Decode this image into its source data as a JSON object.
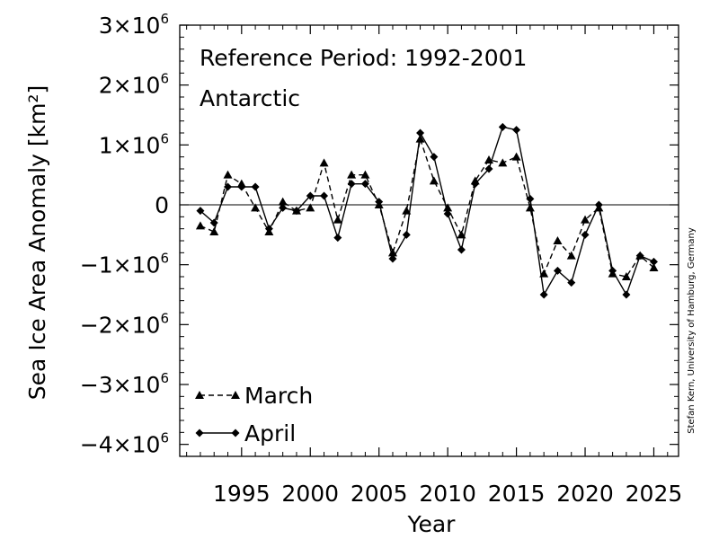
{
  "chart_data": {
    "type": "line",
    "annotations": {
      "reference_period": "Reference Period: 1992-2001",
      "region": "Antarctic",
      "credit": "Stefan Kern, University of Hamburg, Germany"
    },
    "xlabel": "Year",
    "ylabel": "Sea Ice Area Anomaly [km²]",
    "xlim": [
      1990.5,
      2026.8
    ],
    "ylim": [
      -4200000,
      3000000
    ],
    "x_ticks": [
      1995,
      2000,
      2005,
      2010,
      2015,
      2020,
      2025
    ],
    "x_tick_labels": [
      "1995",
      "2000",
      "2005",
      "2010",
      "2015",
      "2020",
      "2025"
    ],
    "y_ticks": [
      {
        "value": 3000000,
        "label": "3×10",
        "exp": "6"
      },
      {
        "value": 2000000,
        "label": "2×10",
        "exp": "6"
      },
      {
        "value": 1000000,
        "label": "1×10",
        "exp": "6"
      },
      {
        "value": 0,
        "label": "0",
        "exp": ""
      },
      {
        "value": -1000000,
        "label": "−1×10",
        "exp": "6"
      },
      {
        "value": -2000000,
        "label": "−2×10",
        "exp": "6"
      },
      {
        "value": -3000000,
        "label": "−3×10",
        "exp": "6"
      },
      {
        "value": -4000000,
        "label": "−4×10",
        "exp": "6"
      }
    ],
    "grid": false,
    "legend_position": "bottom-left",
    "series": [
      {
        "name": "March",
        "line_style": "dashed",
        "marker": "triangle",
        "x": [
          1992,
          1993,
          1994,
          1995,
          1996,
          1997,
          1998,
          1999,
          2000,
          2001,
          2002,
          2003,
          2004,
          2005,
          2006,
          2007,
          2008,
          2009,
          2010,
          2011,
          2012,
          2013,
          2014,
          2015,
          2016,
          2017,
          2018,
          2019,
          2020,
          2021,
          2022,
          2023,
          2024,
          2025
        ],
        "values": [
          -350000,
          -450000,
          500000,
          350000,
          -50000,
          -450000,
          50000,
          -100000,
          -50000,
          700000,
          -250000,
          500000,
          500000,
          0,
          -800000,
          -100000,
          1100000,
          400000,
          -50000,
          -500000,
          400000,
          750000,
          700000,
          800000,
          -50000,
          -1150000,
          -600000,
          -850000,
          -250000,
          -50000,
          -1150000,
          -1200000,
          -850000,
          -1050000
        ]
      },
      {
        "name": "April",
        "line_style": "solid",
        "marker": "diamond",
        "x": [
          1992,
          1993,
          1994,
          1995,
          1996,
          1997,
          1998,
          1999,
          2000,
          2001,
          2002,
          2003,
          2004,
          2005,
          2006,
          2007,
          2008,
          2009,
          2010,
          2011,
          2012,
          2013,
          2014,
          2015,
          2016,
          2017,
          2018,
          2019,
          2020,
          2021,
          2022,
          2023,
          2024,
          2025
        ],
        "values": [
          -100000,
          -300000,
          300000,
          300000,
          300000,
          -400000,
          -50000,
          -100000,
          150000,
          150000,
          -550000,
          350000,
          350000,
          50000,
          -900000,
          -500000,
          1200000,
          800000,
          -150000,
          -750000,
          350000,
          600000,
          1300000,
          1250000,
          100000,
          -1500000,
          -1100000,
          -1300000,
          -500000,
          0,
          -1100000,
          -1500000,
          -850000,
          -950000
        ]
      }
    ]
  }
}
